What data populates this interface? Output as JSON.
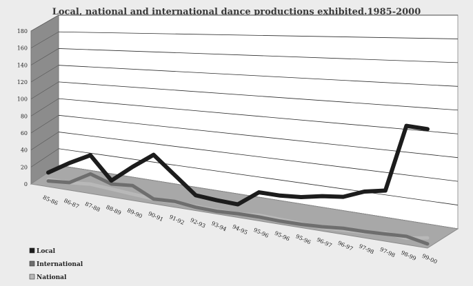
{
  "chart_data": {
    "type": "line",
    "title": "Local, national and international dance productions exhibited.1985-2000",
    "categories": [
      "85-86",
      "86-87",
      "87-88",
      "88-89",
      "89-90",
      "90-91",
      "91-92",
      "92-93",
      "93-94",
      "94-95",
      "95-96",
      "95-96",
      "95-96",
      "96-97",
      "96-97",
      "97-98",
      "97-98",
      "98-99",
      "99-00"
    ],
    "ylim": [
      0,
      180
    ],
    "yticks": [
      0,
      20,
      40,
      60,
      80,
      100,
      120,
      140,
      160,
      180
    ],
    "grid": true,
    "legend_position": "bottom-left",
    "series": [
      {
        "name": "Local",
        "color": "#1c1c1c",
        "values": [
          20,
          35,
          48,
          22,
          42,
          60,
          40,
          20,
          18,
          17,
          35,
          35,
          37,
          42,
          45,
          55,
          60,
          140,
          140
        ]
      },
      {
        "name": "International",
        "color": "#6e6e6e",
        "values": [
          10,
          12,
          26,
          18,
          20,
          8,
          9,
          6,
          5,
          6,
          6,
          5,
          5,
          6,
          8,
          8,
          9,
          10,
          5
        ]
      },
      {
        "name": "National",
        "color": "#b8b8b8",
        "values": [
          12,
          12,
          14,
          12,
          10,
          8,
          8,
          7,
          6,
          6,
          8,
          7,
          6,
          5,
          6,
          7,
          10,
          8,
          12
        ]
      }
    ]
  }
}
